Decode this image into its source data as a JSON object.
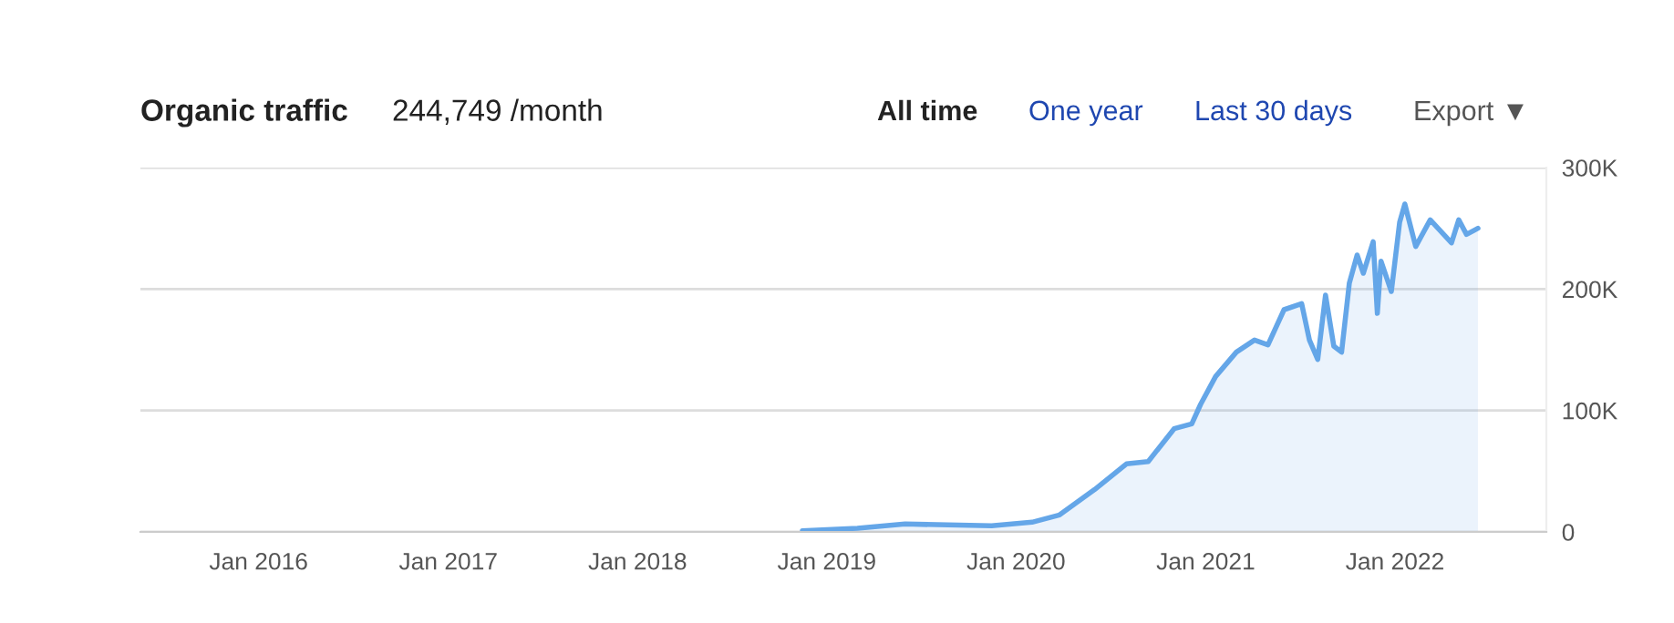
{
  "chart_data": {
    "type": "area",
    "title": "Organic traffic",
    "subtitle": "244,749 /month",
    "annotations": [
      "All time",
      "One year",
      "Last 30 days",
      "Export ▼"
    ],
    "x": [
      "2018-11-15",
      "2019-03-01",
      "2019-06-01",
      "2019-11-15",
      "2020-02-01",
      "2020-03-25",
      "2020-06-01",
      "2020-08-01",
      "2020-09-12",
      "2020-11-01",
      "2020-12-05",
      "2020-12-22",
      "2021-01-20",
      "2021-03-01",
      "2021-04-05",
      "2021-05-01",
      "2021-06-01",
      "2021-07-05",
      "2021-07-20",
      "2021-08-05",
      "2021-08-20",
      "2021-09-05",
      "2021-09-20",
      "2021-10-05",
      "2021-10-20",
      "2021-11-01",
      "2021-11-20",
      "2021-11-28",
      "2021-12-05",
      "2021-12-25",
      "2022-01-10",
      "2022-01-20",
      "2022-02-10",
      "2022-03-10",
      "2022-04-20",
      "2022-05-04",
      "2022-05-19",
      "2022-06-10"
    ],
    "series": [
      {
        "color": "#64a6e8",
        "values": [
          1000,
          3000,
          6500,
          5000,
          8000,
          14000,
          35000,
          56000,
          58000,
          85000,
          89000,
          105000,
          128000,
          148000,
          158000,
          154000,
          183000,
          188000,
          158000,
          142000,
          195000,
          153000,
          148000,
          205000,
          228000,
          213000,
          239000,
          180000,
          223000,
          198000,
          255000,
          270000,
          235000,
          257000,
          238000,
          257000,
          245000,
          250000
        ]
      }
    ],
    "xlim": [
      "2015-05-18",
      "2022-10-20"
    ],
    "xticks": [
      {
        "value": "2016-01-01",
        "label": "Jan 2016"
      },
      {
        "value": "2017-01-01",
        "label": "Jan 2017"
      },
      {
        "value": "2018-01-01",
        "label": "Jan 2018"
      },
      {
        "value": "2019-01-01",
        "label": "Jan 2019"
      },
      {
        "value": "2020-01-01",
        "label": "Jan 2020"
      },
      {
        "value": "2021-01-01",
        "label": "Jan 2021"
      },
      {
        "value": "2022-01-01",
        "label": "Jan 2022"
      }
    ],
    "ylim": [
      0,
      300000
    ],
    "yticks": [
      0,
      {
        "value": 100000,
        "label": "100K"
      },
      {
        "value": 200000,
        "label": "200K"
      },
      {
        "value": 300000,
        "label": "300K"
      }
    ],
    "grid": "y",
    "legend": false,
    "marker": "none",
    "line_style": "solid"
  }
}
